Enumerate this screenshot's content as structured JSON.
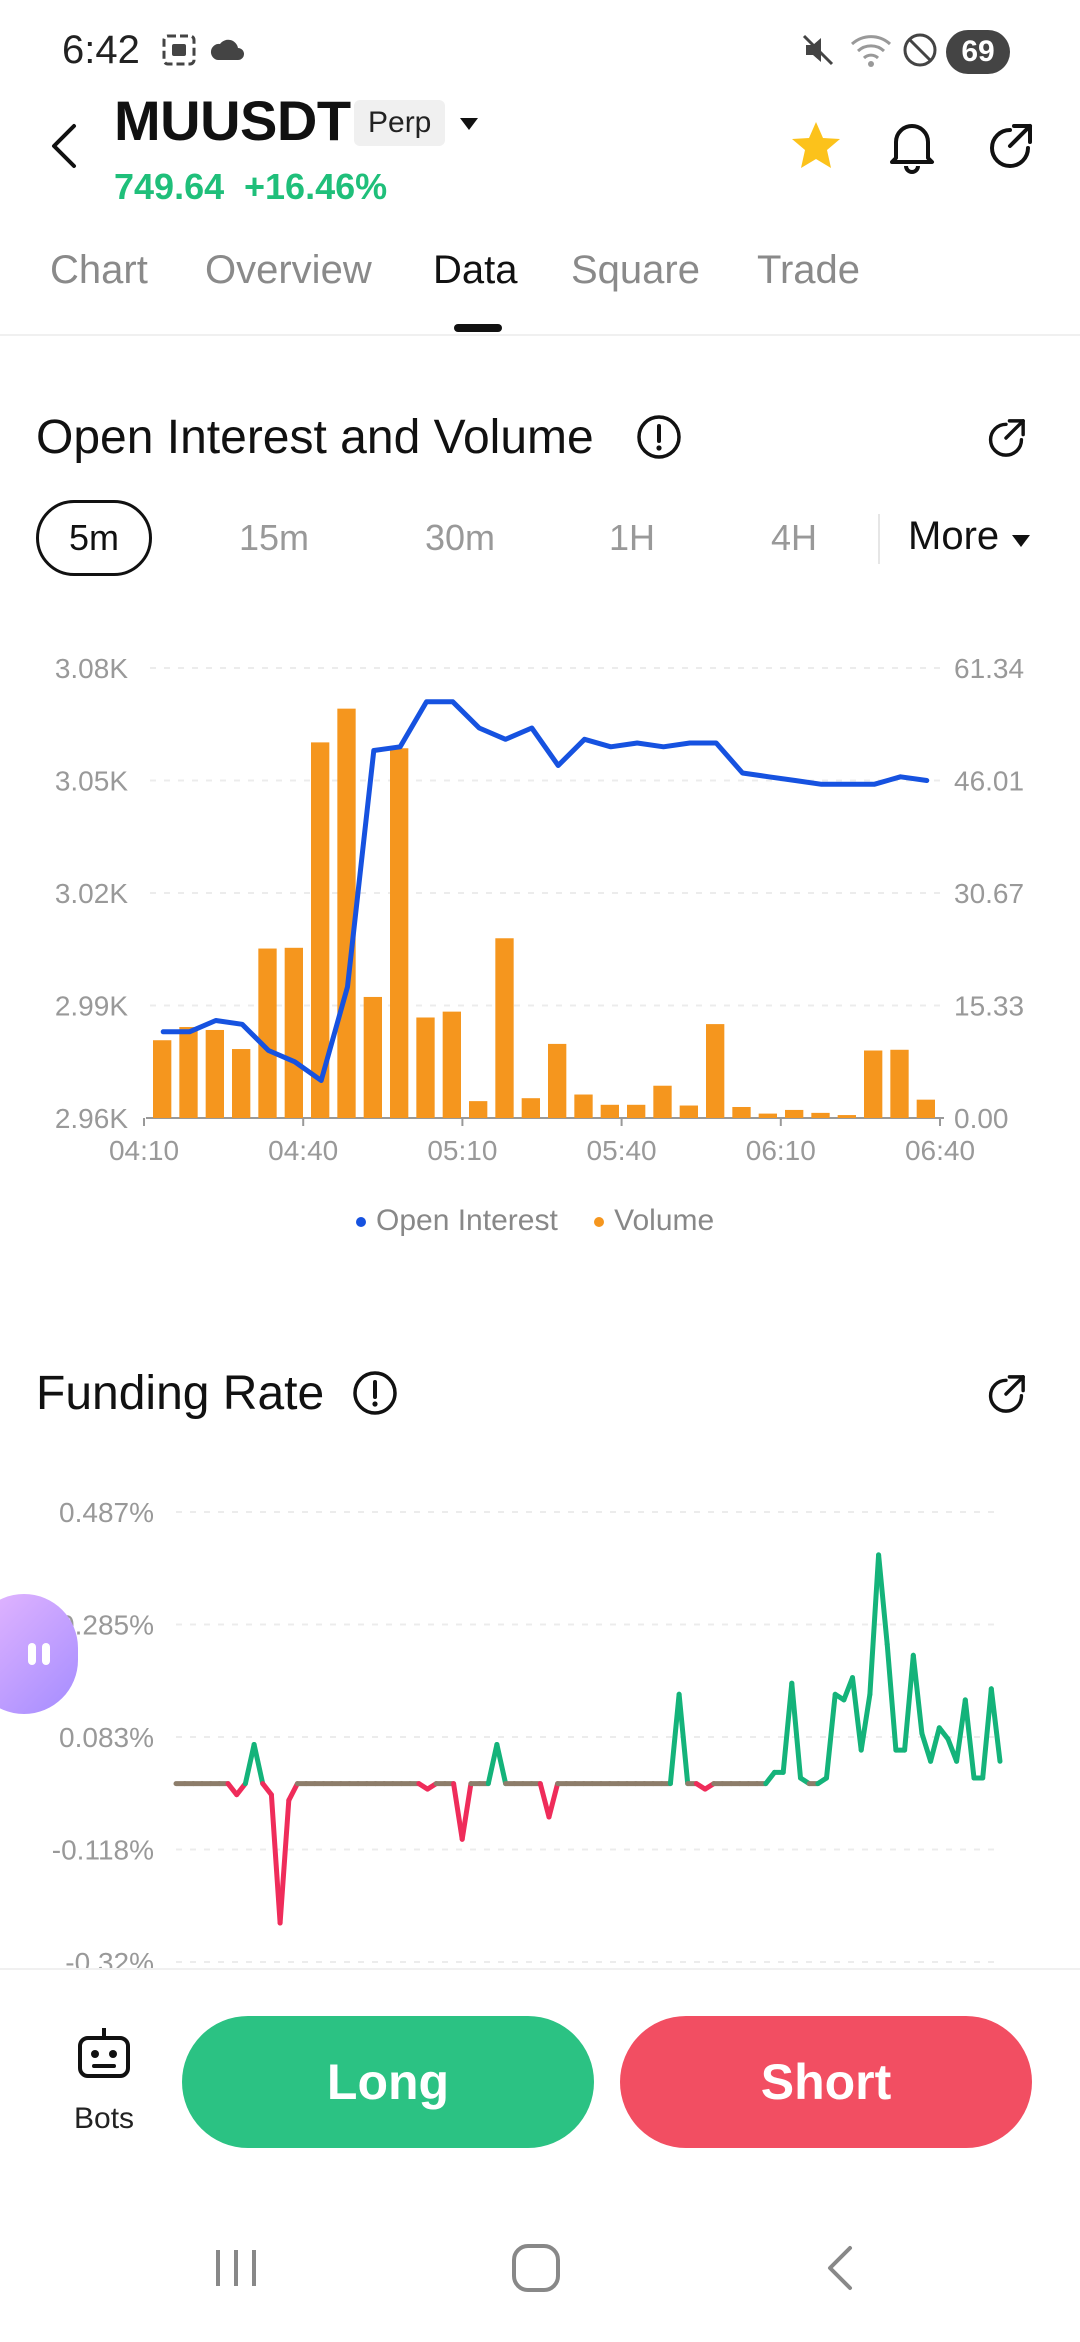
{
  "status_bar": {
    "time": "6:42",
    "battery": "69"
  },
  "header": {
    "symbol": "MUUSDT",
    "badge": "Perp",
    "price": "749.64",
    "change": "+16.46%"
  },
  "tabs": [
    {
      "label": "Chart"
    },
    {
      "label": "Overview"
    },
    {
      "label": "Data"
    },
    {
      "label": "Square"
    },
    {
      "label": "Trade"
    }
  ],
  "active_tab": "Data",
  "oi_section": {
    "title": "Open Interest and Volume",
    "intervals": [
      "5m",
      "15m",
      "30m",
      "1H",
      "4H"
    ],
    "active_interval": "5m",
    "more_label": "More"
  },
  "funding_section": {
    "title": "Funding Rate"
  },
  "bottom": {
    "bots_label": "Bots",
    "long_label": "Long",
    "short_label": "Short"
  },
  "colors": {
    "green": "#2bc283",
    "red": "#f24e62",
    "oi_line": "#1652e0",
    "volume_bar": "#f5961e",
    "funding_up": "#14b37a",
    "funding_down": "#ef2c5a"
  },
  "chart_data": [
    {
      "type": "bar",
      "title": "Open Interest and Volume",
      "x_ticks": [
        "04:10",
        "04:40",
        "05:10",
        "05:40",
        "06:10",
        "06:40"
      ],
      "y_left_ticks": [
        "3.08K",
        "3.05K",
        "3.02K",
        "2.99K",
        "2.96K"
      ],
      "y_right_ticks": [
        "61.34",
        "46.01",
        "30.67",
        "15.33",
        "0.00"
      ],
      "ylim_left": [
        2960,
        3080
      ],
      "ylim_right": [
        0,
        61.34
      ],
      "legend": [
        "Open Interest",
        "Volume"
      ],
      "legend_position": "bottom-center",
      "series": [
        {
          "name": "Volume",
          "type": "bar",
          "axis": "right",
          "values": [
            10.6,
            12.4,
            12.0,
            9.4,
            23.1,
            23.2,
            51.2,
            55.8,
            16.5,
            50.4,
            13.7,
            14.5,
            2.3,
            24.5,
            2.7,
            10.1,
            3.2,
            1.8,
            1.8,
            4.4,
            1.7,
            12.8,
            1.5,
            0.6,
            1.1,
            0.7,
            0.4,
            9.2,
            9.3,
            2.5
          ]
        },
        {
          "name": "Open Interest",
          "type": "line",
          "axis": "left",
          "values": [
            2983,
            2983,
            2986,
            2985,
            2978,
            2975,
            2970,
            2995,
            3058,
            3059,
            3071,
            3071,
            3064,
            3061,
            3064,
            3054,
            3061,
            3059,
            3060,
            3059,
            3060,
            3060,
            3052,
            3051,
            3050,
            3049,
            3049,
            3049,
            3051,
            3050
          ]
        }
      ],
      "grid": true
    },
    {
      "type": "line",
      "title": "Funding Rate",
      "y_ticks": [
        "0.487%",
        "0.285%",
        "0.083%",
        "-0.118%",
        "-0.32%"
      ],
      "ylim": [
        -0.32,
        0.487
      ],
      "series": [
        {
          "values": [
            0.0,
            0.0,
            0.0,
            0.0,
            0.0,
            0.0,
            0.0,
            -0.02,
            0.0,
            0.07,
            0.0,
            -0.02,
            -0.25,
            -0.03,
            0.0,
            0.0,
            0.0,
            0.0,
            0.0,
            0.0,
            0.0,
            0.0,
            0.0,
            0.0,
            0.0,
            0.0,
            0.0,
            0.0,
            0.0,
            -0.01,
            0.0,
            0.0,
            0.0,
            -0.1,
            0.0,
            0.0,
            0.0,
            0.07,
            0.0,
            0.0,
            0.0,
            0.0,
            0.0,
            -0.06,
            0.0,
            0.0,
            0.0,
            0.0,
            0.0,
            0.0,
            0.0,
            0.0,
            0.0,
            0.0,
            0.0,
            0.0,
            0.0,
            0.0,
            0.16,
            0.0,
            0.0,
            -0.01,
            0.0,
            0.0,
            0.0,
            0.0,
            0.0,
            0.0,
            0.0,
            0.02,
            0.02,
            0.18,
            0.01,
            0.0,
            0.0,
            0.01,
            0.16,
            0.15,
            0.19,
            0.06,
            0.16,
            0.41,
            0.25,
            0.06,
            0.06,
            0.23,
            0.09,
            0.04,
            0.1,
            0.08,
            0.04,
            0.15,
            0.01,
            0.01,
            0.17,
            0.04
          ]
        }
      ],
      "grid": true
    }
  ]
}
